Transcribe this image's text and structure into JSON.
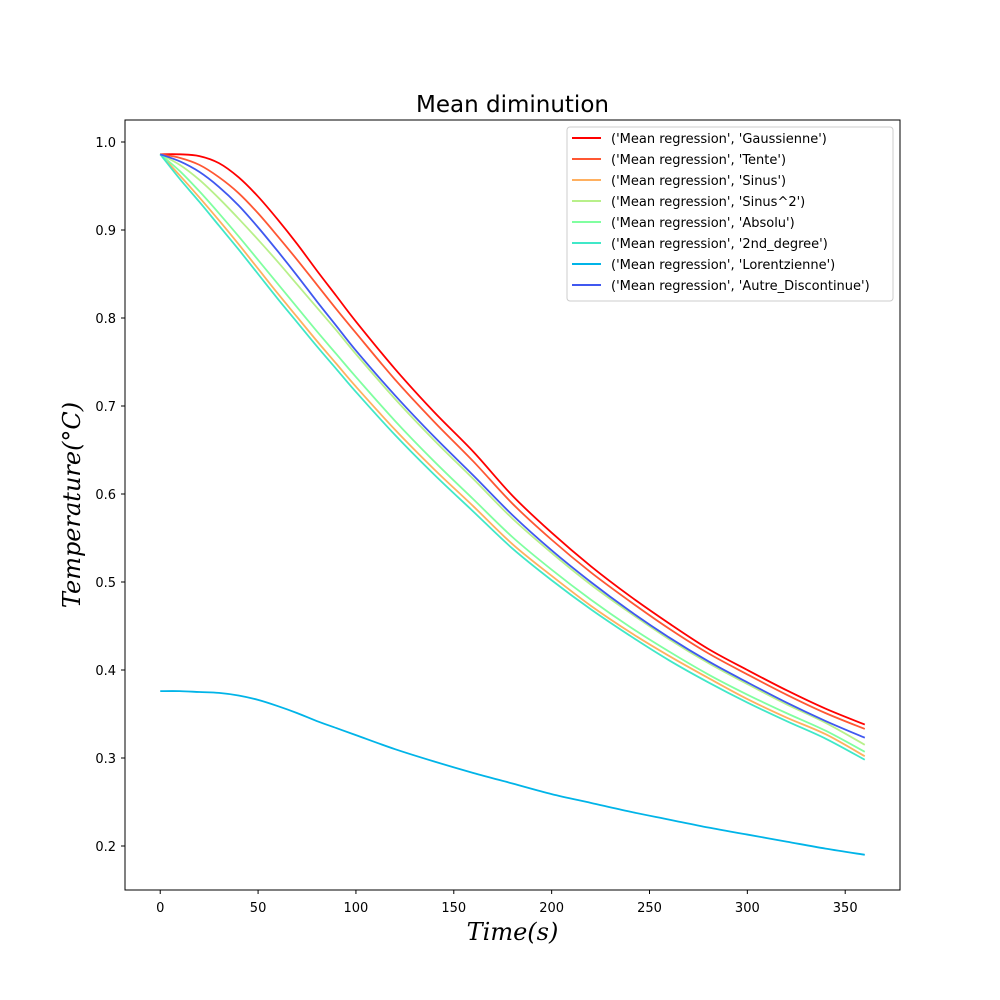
{
  "chart_data": {
    "type": "line",
    "title": "Mean diminution",
    "xlabel": "Time(s)",
    "ylabel": "Temperature(°C)",
    "xlim": [
      -18,
      378
    ],
    "ylim": [
      0.15,
      1.025
    ],
    "xticks": [
      0,
      50,
      100,
      150,
      200,
      250,
      300,
      350
    ],
    "yticks": [
      0.2,
      0.3,
      0.4,
      0.5,
      0.6,
      0.7,
      0.8,
      0.9,
      1.0
    ],
    "xtick_labels": [
      "0",
      "50",
      "100",
      "150",
      "200",
      "250",
      "300",
      "350"
    ],
    "ytick_labels": [
      "0.2",
      "0.3",
      "0.4",
      "0.5",
      "0.6",
      "0.7",
      "0.8",
      "0.9",
      "1.0"
    ],
    "grid": false,
    "legend_position": "top-right",
    "x": [
      0,
      10,
      20,
      30,
      40,
      50,
      60,
      70,
      80,
      90,
      100,
      120,
      140,
      160,
      180,
      200,
      220,
      240,
      260,
      280,
      300,
      320,
      340,
      360
    ],
    "series": [
      {
        "name": "('Mean regression', 'Gaussienne')",
        "color": "#ff0000",
        "values": [
          0.986,
          0.986,
          0.984,
          0.976,
          0.96,
          0.938,
          0.912,
          0.884,
          0.854,
          0.825,
          0.796,
          0.742,
          0.693,
          0.648,
          0.598,
          0.556,
          0.518,
          0.484,
          0.453,
          0.424,
          0.4,
          0.377,
          0.356,
          0.338
        ]
      },
      {
        "name": "('Mean regression', 'Tente')",
        "color": "#ff5733",
        "values": [
          0.986,
          0.982,
          0.974,
          0.96,
          0.942,
          0.919,
          0.893,
          0.866,
          0.838,
          0.81,
          0.783,
          0.73,
          0.682,
          0.637,
          0.589,
          0.548,
          0.511,
          0.478,
          0.447,
          0.419,
          0.395,
          0.372,
          0.351,
          0.333
        ]
      },
      {
        "name": "('Mean regression', 'Sinus')",
        "color": "#ffb060",
        "values": [
          0.986,
          0.962,
          0.937,
          0.911,
          0.884,
          0.856,
          0.828,
          0.801,
          0.774,
          0.748,
          0.722,
          0.673,
          0.628,
          0.586,
          0.543,
          0.507,
          0.473,
          0.443,
          0.416,
          0.391,
          0.367,
          0.346,
          0.327,
          0.302
        ]
      },
      {
        "name": "('Mean regression', 'Sinus^2')",
        "color": "#b8f08a",
        "values": [
          0.986,
          0.974,
          0.957,
          0.936,
          0.913,
          0.889,
          0.864,
          0.838,
          0.812,
          0.786,
          0.759,
          0.708,
          0.661,
          0.617,
          0.572,
          0.533,
          0.497,
          0.465,
          0.435,
          0.408,
          0.384,
          0.361,
          0.34,
          0.315
        ]
      },
      {
        "name": "('Mean regression', 'Absolu')",
        "color": "#80ffa0",
        "values": [
          0.986,
          0.967,
          0.944,
          0.919,
          0.893,
          0.866,
          0.839,
          0.812,
          0.785,
          0.759,
          0.733,
          0.683,
          0.637,
          0.594,
          0.551,
          0.514,
          0.48,
          0.449,
          0.421,
          0.395,
          0.372,
          0.351,
          0.331,
          0.307
        ]
      },
      {
        "name": "('Mean regression', '2nd_degree')",
        "color": "#40e8c8",
        "values": [
          0.986,
          0.958,
          0.932,
          0.905,
          0.878,
          0.85,
          0.822,
          0.795,
          0.768,
          0.742,
          0.716,
          0.667,
          0.622,
          0.58,
          0.538,
          0.502,
          0.469,
          0.439,
          0.411,
          0.386,
          0.363,
          0.342,
          0.322,
          0.298
        ]
      },
      {
        "name": "('Mean regression', 'Lorentzienne')",
        "color": "#00b4e8",
        "values": [
          0.376,
          0.376,
          0.375,
          0.374,
          0.371,
          0.366,
          0.359,
          0.351,
          0.342,
          0.334,
          0.326,
          0.31,
          0.296,
          0.283,
          0.271,
          0.259,
          0.249,
          0.239,
          0.23,
          0.221,
          0.213,
          0.205,
          0.197,
          0.19
        ]
      },
      {
        "name": "('Mean regression', 'Autre_Discontinue')",
        "color": "#4058f0",
        "values": [
          0.986,
          0.978,
          0.966,
          0.949,
          0.928,
          0.903,
          0.876,
          0.848,
          0.819,
          0.791,
          0.763,
          0.712,
          0.665,
          0.621,
          0.576,
          0.536,
          0.5,
          0.467,
          0.437,
          0.41,
          0.386,
          0.363,
          0.342,
          0.323
        ]
      }
    ]
  }
}
